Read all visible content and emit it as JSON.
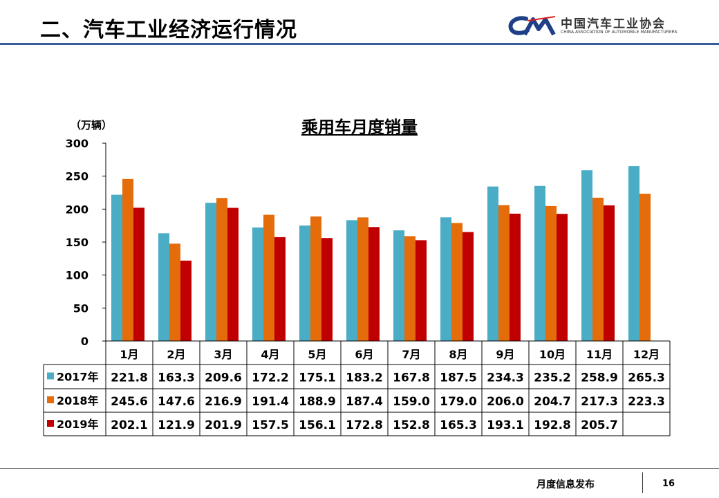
{
  "slide": {
    "title": "二、汽车工业经济运行情况",
    "footer": "月度信息发布",
    "page_number": "16"
  },
  "logo": {
    "mark": "CAM",
    "name_cn": "中国汽车工业协会",
    "name_en": "CHINA ASSOCIATION OF AUTOMOBILE MANUFACTURERS",
    "color": "#1f3f86"
  },
  "chart_data": {
    "type": "bar",
    "title": "乘用车月度销量",
    "ylabel": "（万辆）",
    "ylim": [
      0,
      300
    ],
    "yticks": [
      "0",
      "50",
      "100",
      "150",
      "200",
      "250",
      "300"
    ],
    "categories": [
      "1月",
      "2月",
      "3月",
      "4月",
      "5月",
      "6月",
      "7月",
      "8月",
      "9月",
      "10月",
      "11月",
      "12月"
    ],
    "series": [
      {
        "name": "2017年",
        "color": "#4bacc6",
        "values": [
          221.8,
          163.3,
          209.6,
          172.2,
          175.1,
          183.2,
          167.8,
          187.5,
          234.3,
          235.2,
          258.9,
          265.3
        ]
      },
      {
        "name": "2018年",
        "color": "#e46c0a",
        "values": [
          245.6,
          147.6,
          216.9,
          191.4,
          188.9,
          187.4,
          159.0,
          179.0,
          206.0,
          204.7,
          217.3,
          223.3
        ]
      },
      {
        "name": "2019年",
        "color": "#c00000",
        "values": [
          202.1,
          121.9,
          201.9,
          157.5,
          156.1,
          172.8,
          152.8,
          165.3,
          193.1,
          192.8,
          205.7,
          null
        ]
      }
    ],
    "grid": false,
    "legend": "data-table"
  }
}
